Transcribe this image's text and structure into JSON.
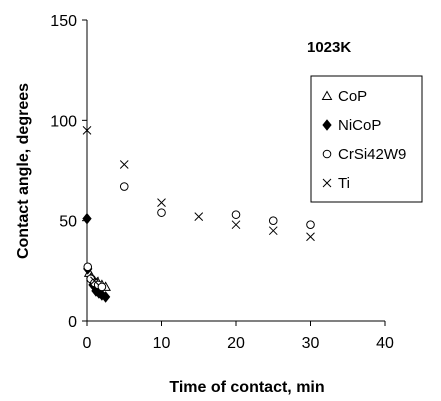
{
  "chart_data": {
    "type": "scatter",
    "title": "",
    "annotation": "1023K",
    "xlabel": "Time of contact, min",
    "ylabel": "Contact angle, degrees",
    "xlim": [
      0,
      40
    ],
    "ylim": [
      0,
      150
    ],
    "x_ticks": [
      "0",
      "10",
      "20",
      "30",
      "40"
    ],
    "y_ticks": [
      "0",
      "50",
      "100",
      "150"
    ],
    "grid": false,
    "legend_position": "right",
    "series": [
      {
        "name": "CoP",
        "marker": "triangle-open",
        "points": [
          [
            0.3,
            24
          ],
          [
            0.6,
            22
          ],
          [
            1.0,
            20
          ],
          [
            1.5,
            19
          ],
          [
            2.0,
            18
          ],
          [
            2.5,
            17
          ]
        ]
      },
      {
        "name": "NiCoP",
        "marker": "diamond-filled",
        "points": [
          [
            0.0,
            51
          ],
          [
            0.1,
            26
          ],
          [
            0.5,
            21
          ],
          [
            0.8,
            18
          ],
          [
            1.2,
            15
          ],
          [
            1.6,
            14
          ],
          [
            2.0,
            13
          ],
          [
            2.5,
            12
          ]
        ]
      },
      {
        "name": "CrSi42W9",
        "marker": "circle-open",
        "points": [
          [
            0.1,
            27
          ],
          [
            0.5,
            21
          ],
          [
            1.0,
            19
          ],
          [
            1.5,
            18
          ],
          [
            2.0,
            17
          ],
          [
            5.0,
            67
          ],
          [
            10.0,
            54
          ],
          [
            20.0,
            53
          ],
          [
            25.0,
            50
          ],
          [
            30.0,
            48
          ]
        ]
      },
      {
        "name": "Ti",
        "marker": "x",
        "points": [
          [
            0.0,
            95
          ],
          [
            1.0,
            20
          ],
          [
            5.0,
            78
          ],
          [
            10.0,
            59
          ],
          [
            15.0,
            52
          ],
          [
            20.0,
            48
          ],
          [
            25.0,
            45
          ],
          [
            30.0,
            42
          ]
        ]
      }
    ]
  }
}
